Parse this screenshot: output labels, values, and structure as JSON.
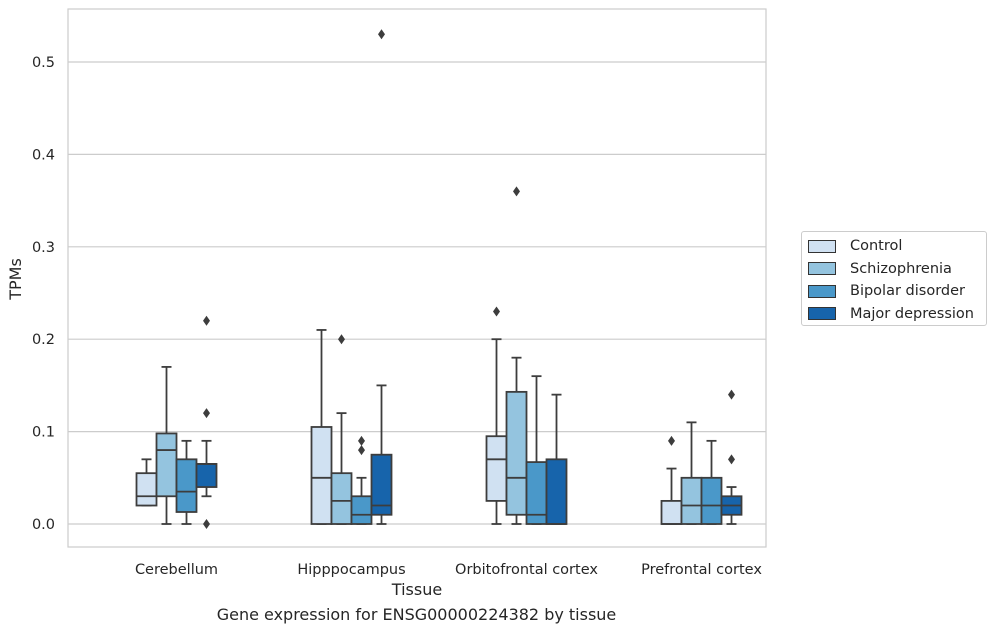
{
  "caption": "Gene expression for ENSG00000224382 by tissue",
  "chart_data": {
    "type": "box",
    "xlabel": "Tissue",
    "ylabel": "TPMs",
    "ylim": [
      -0.025,
      0.557
    ],
    "yticks": [
      0.0,
      0.1,
      0.2,
      0.3,
      0.4,
      0.5
    ],
    "ytick_labels": [
      "0.0",
      "0.1",
      "0.2",
      "0.3",
      "0.4",
      "0.5"
    ],
    "grid": true,
    "legend_position": "right",
    "categories": [
      "Cerebellum",
      "Hipppocampus",
      "Orbitofrontal cortex",
      "Prefrontal cortex"
    ],
    "series": [
      {
        "name": "Control",
        "color": "#d0e1f2",
        "boxes": [
          {
            "whislo": 0.02,
            "q1": 0.02,
            "med": 0.03,
            "q3": 0.055,
            "whishi": 0.07,
            "fliers": []
          },
          {
            "whislo": 0.0,
            "q1": 0.0,
            "med": 0.05,
            "q3": 0.105,
            "whishi": 0.21,
            "fliers": []
          },
          {
            "whislo": 0.0,
            "q1": 0.025,
            "med": 0.07,
            "q3": 0.095,
            "whishi": 0.2,
            "fliers": [
              0.23
            ]
          },
          {
            "whislo": 0.0,
            "q1": 0.0,
            "med": 0.0,
            "q3": 0.025,
            "whishi": 0.06,
            "fliers": [
              0.09
            ]
          }
        ]
      },
      {
        "name": "Schizophrenia",
        "color": "#94c4df",
        "boxes": [
          {
            "whislo": 0.0,
            "q1": 0.03,
            "med": 0.08,
            "q3": 0.098,
            "whishi": 0.17,
            "fliers": []
          },
          {
            "whislo": 0.0,
            "q1": 0.0,
            "med": 0.025,
            "q3": 0.055,
            "whishi": 0.12,
            "fliers": [
              0.2
            ]
          },
          {
            "whislo": 0.0,
            "q1": 0.01,
            "med": 0.05,
            "q3": 0.143,
            "whishi": 0.18,
            "fliers": [
              0.36
            ]
          },
          {
            "whislo": 0.0,
            "q1": 0.0,
            "med": 0.02,
            "q3": 0.05,
            "whishi": 0.11,
            "fliers": []
          }
        ]
      },
      {
        "name": "Bipolar disorder",
        "color": "#4a98c9",
        "boxes": [
          {
            "whislo": 0.0,
            "q1": 0.013,
            "med": 0.035,
            "q3": 0.07,
            "whishi": 0.09,
            "fliers": []
          },
          {
            "whislo": 0.0,
            "q1": 0.0,
            "med": 0.01,
            "q3": 0.03,
            "whishi": 0.05,
            "fliers": [
              0.08,
              0.09
            ]
          },
          {
            "whislo": 0.0,
            "q1": 0.0,
            "med": 0.01,
            "q3": 0.067,
            "whishi": 0.16,
            "fliers": []
          },
          {
            "whislo": 0.0,
            "q1": 0.0,
            "med": 0.02,
            "q3": 0.05,
            "whishi": 0.09,
            "fliers": []
          }
        ]
      },
      {
        "name": "Major depression",
        "color": "#1764ab",
        "boxes": [
          {
            "whislo": 0.03,
            "q1": 0.04,
            "med": 0.065,
            "q3": 0.065,
            "whishi": 0.09,
            "fliers": [
              0.0,
              0.12,
              0.22
            ]
          },
          {
            "whislo": 0.0,
            "q1": 0.01,
            "med": 0.02,
            "q3": 0.075,
            "whishi": 0.15,
            "fliers": [
              0.53
            ]
          },
          {
            "whislo": 0.0,
            "q1": 0.0,
            "med": 0.0,
            "q3": 0.07,
            "whishi": 0.14,
            "fliers": []
          },
          {
            "whislo": 0.0,
            "q1": 0.01,
            "med": 0.02,
            "q3": 0.03,
            "whishi": 0.04,
            "fliers": [
              0.07,
              0.14
            ]
          }
        ]
      }
    ]
  }
}
